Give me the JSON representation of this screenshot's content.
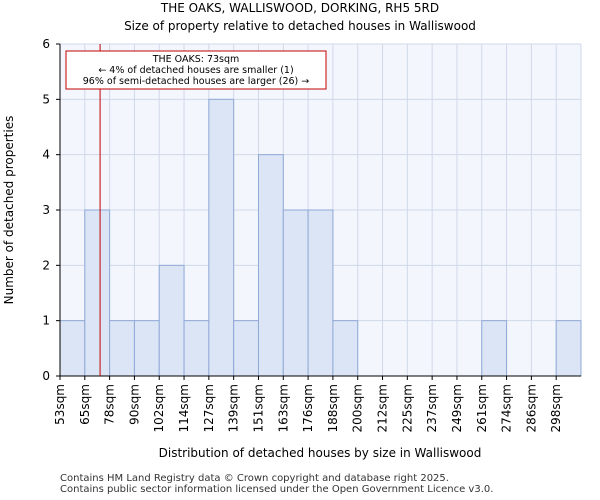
{
  "chart_data": {
    "type": "bar",
    "title": "THE OAKS, WALLISWOOD, DORKING, RH5 5RD",
    "subtitle": "Size of property relative to detached houses in Walliswood",
    "xlabel": "Distribution of detached houses by size in Walliswood",
    "ylabel": "Number of detached properties",
    "categories": [
      "53sqm",
      "65sqm",
      "78sqm",
      "90sqm",
      "102sqm",
      "114sqm",
      "127sqm",
      "139sqm",
      "151sqm",
      "163sqm",
      "176sqm",
      "188sqm",
      "200sqm",
      "212sqm",
      "225sqm",
      "237sqm",
      "249sqm",
      "261sqm",
      "274sqm",
      "286sqm",
      "298sqm"
    ],
    "values": [
      1,
      3,
      1,
      1,
      2,
      1,
      5,
      1,
      4,
      3,
      3,
      1,
      0,
      0,
      0,
      0,
      0,
      1,
      0,
      0,
      1
    ],
    "ylim": [
      0,
      6
    ],
    "yticks": [
      0,
      1,
      2,
      3,
      4,
      5,
      6
    ],
    "grid": true,
    "marker": {
      "value_sqm": 73,
      "annotation_lines": [
        "THE OAKS: 73sqm",
        "← 4% of detached houses are smaller (1)",
        "96% of semi-detached houses are larger (26) →"
      ]
    },
    "colors": {
      "bar_fill": "#dbe5f6",
      "bar_stroke": "#8fa8d6",
      "marker": "#c00000",
      "grid": "#d0d8ea",
      "plot_bg": "#f3f6fd"
    }
  },
  "footer": {
    "line1": "Contains HM Land Registry data © Crown copyright and database right 2025.",
    "line2": "Contains public sector information licensed under the Open Government Licence v3.0."
  }
}
